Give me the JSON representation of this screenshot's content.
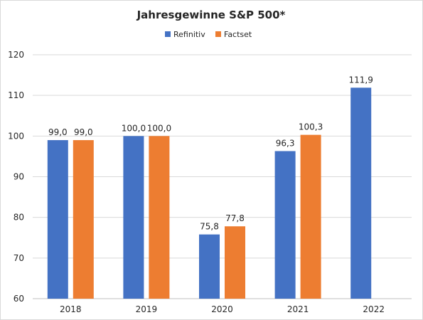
{
  "chart_data": {
    "type": "bar",
    "title": "Jahresgewinne S&P 500*",
    "xlabel": "",
    "ylabel": "",
    "categories": [
      "2018",
      "2019",
      "2020",
      "2021",
      "2022"
    ],
    "series": [
      {
        "name": "Refinitiv",
        "color": "#4472c4",
        "values": [
          99.0,
          100.0,
          75.8,
          96.3,
          111.9
        ],
        "labels": [
          "99,0",
          "100,0",
          "75,8",
          "96,3",
          "111,9"
        ]
      },
      {
        "name": "Factset",
        "color": "#ed7d31",
        "values": [
          99.0,
          100.0,
          77.8,
          100.3,
          null
        ],
        "labels": [
          "99,0",
          "100,0",
          "77,8",
          "100,3",
          null
        ]
      }
    ],
    "ylim": [
      60,
      120
    ],
    "yticks": [
      60,
      70,
      80,
      90,
      100,
      110,
      120
    ],
    "grid": true,
    "legend_position": "top"
  }
}
